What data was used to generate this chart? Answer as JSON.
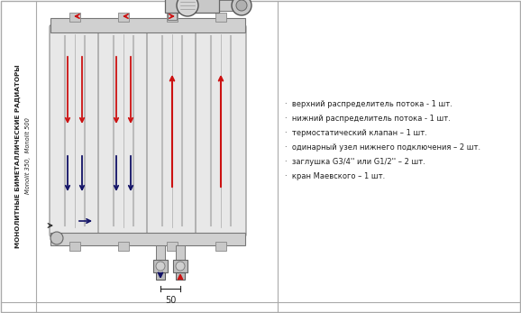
{
  "bg_color": "#ffffff",
  "border_color": "#aaaaaa",
  "section_fill": "#e8e8e8",
  "section_edge": "#888888",
  "header_fill": "#d0d0d0",
  "header_edge": "#777777",
  "pipe_fill": "#cccccc",
  "pipe_edge": "#777777",
  "red_color": "#cc1111",
  "blue_color": "#111166",
  "dark_color": "#222222",
  "left_text_line1": "МОНОЛИТНЫЕ БИМЕТАЛЛИЧЕСКИЕ РАДИАТОРЫ",
  "left_text_line2": "Monolit 350,  Monolit 500",
  "bullet_items": [
    "верхний распределитель потока - 1 шт.",
    "нижний распределитель потока - 1 шт.",
    "термостатический клапан – 1 шт.",
    "одинарный узел нижнего подключения – 2 шт.",
    "заглушка G3/4'' или G1/2'' – 2 шт.",
    "кран Маевского – 1 шт."
  ],
  "dim_label": "50"
}
